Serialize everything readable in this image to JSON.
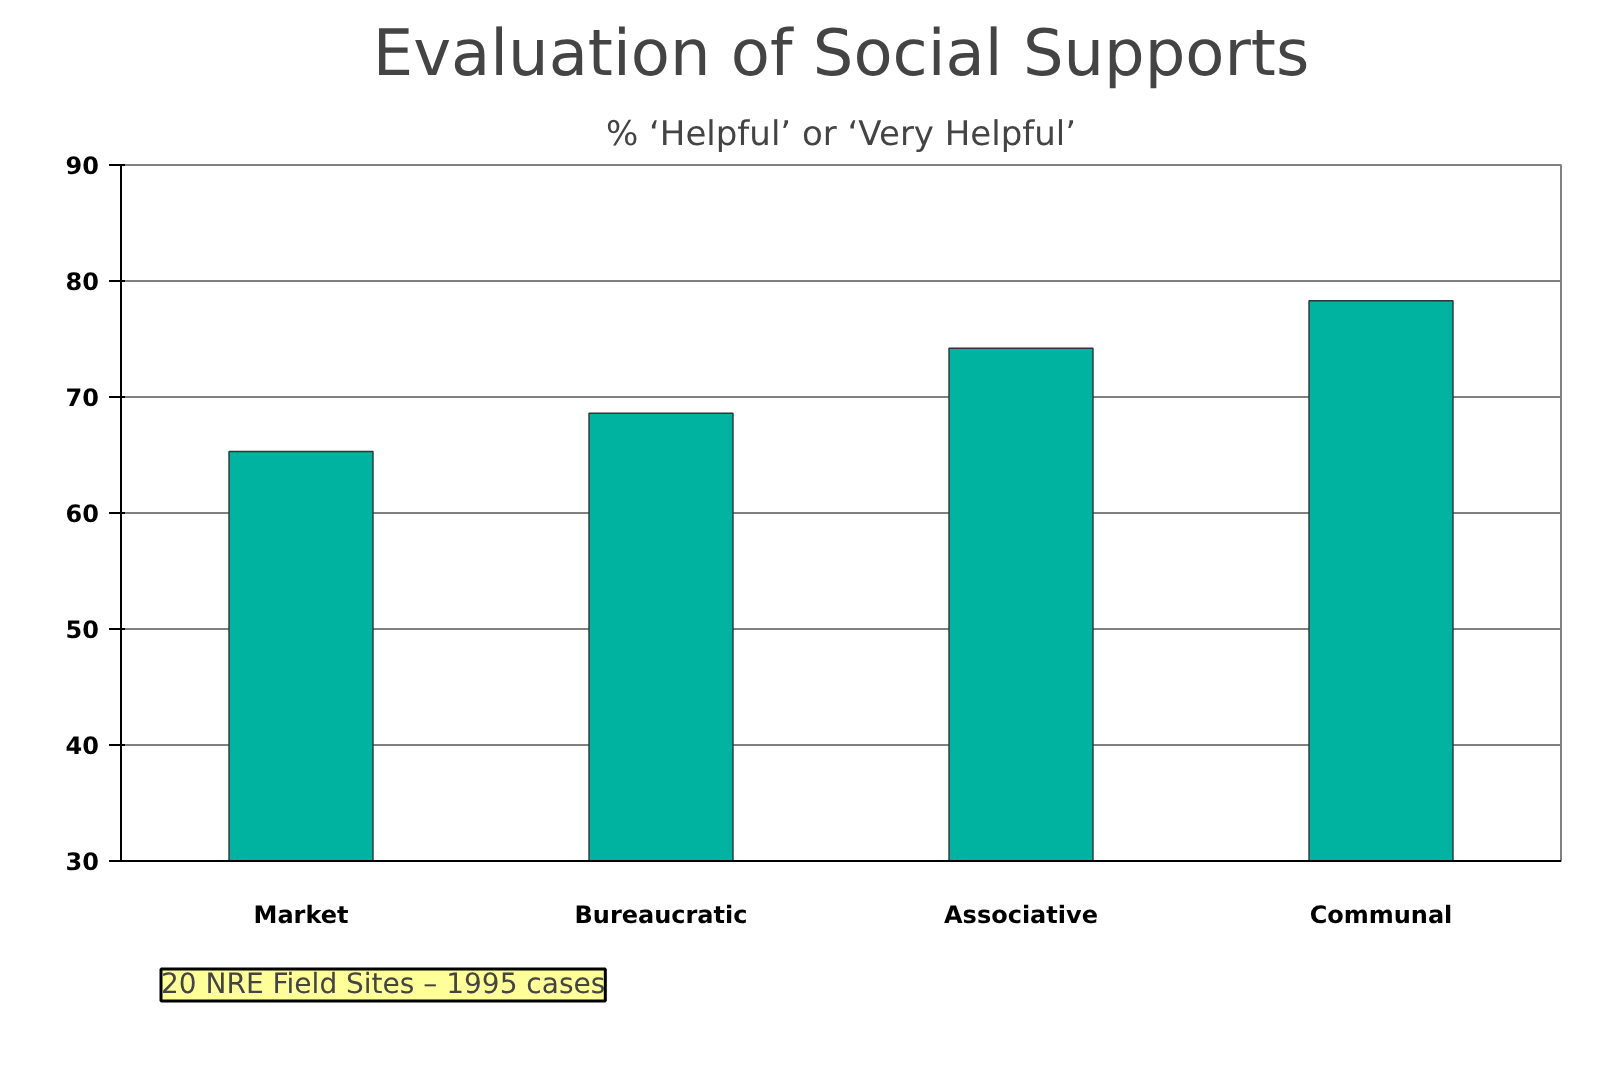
{
  "chart_data": {
    "type": "bar",
    "title": "Evaluation of Social Supports",
    "subtitle": "% ‘Helpful’ or ‘Very Helpful’",
    "categories": [
      "Market",
      "Bureaucratic",
      "Associative",
      "Communal"
    ],
    "values": [
      65.3,
      68.6,
      74.2,
      78.3
    ],
    "color": "#00b2a0",
    "ylim": [
      30,
      90
    ],
    "yticks": [
      30,
      40,
      50,
      60,
      70,
      80,
      90
    ],
    "grid": "y",
    "annotations": [
      "20 NRE Field Sites – 1995 cases"
    ]
  }
}
